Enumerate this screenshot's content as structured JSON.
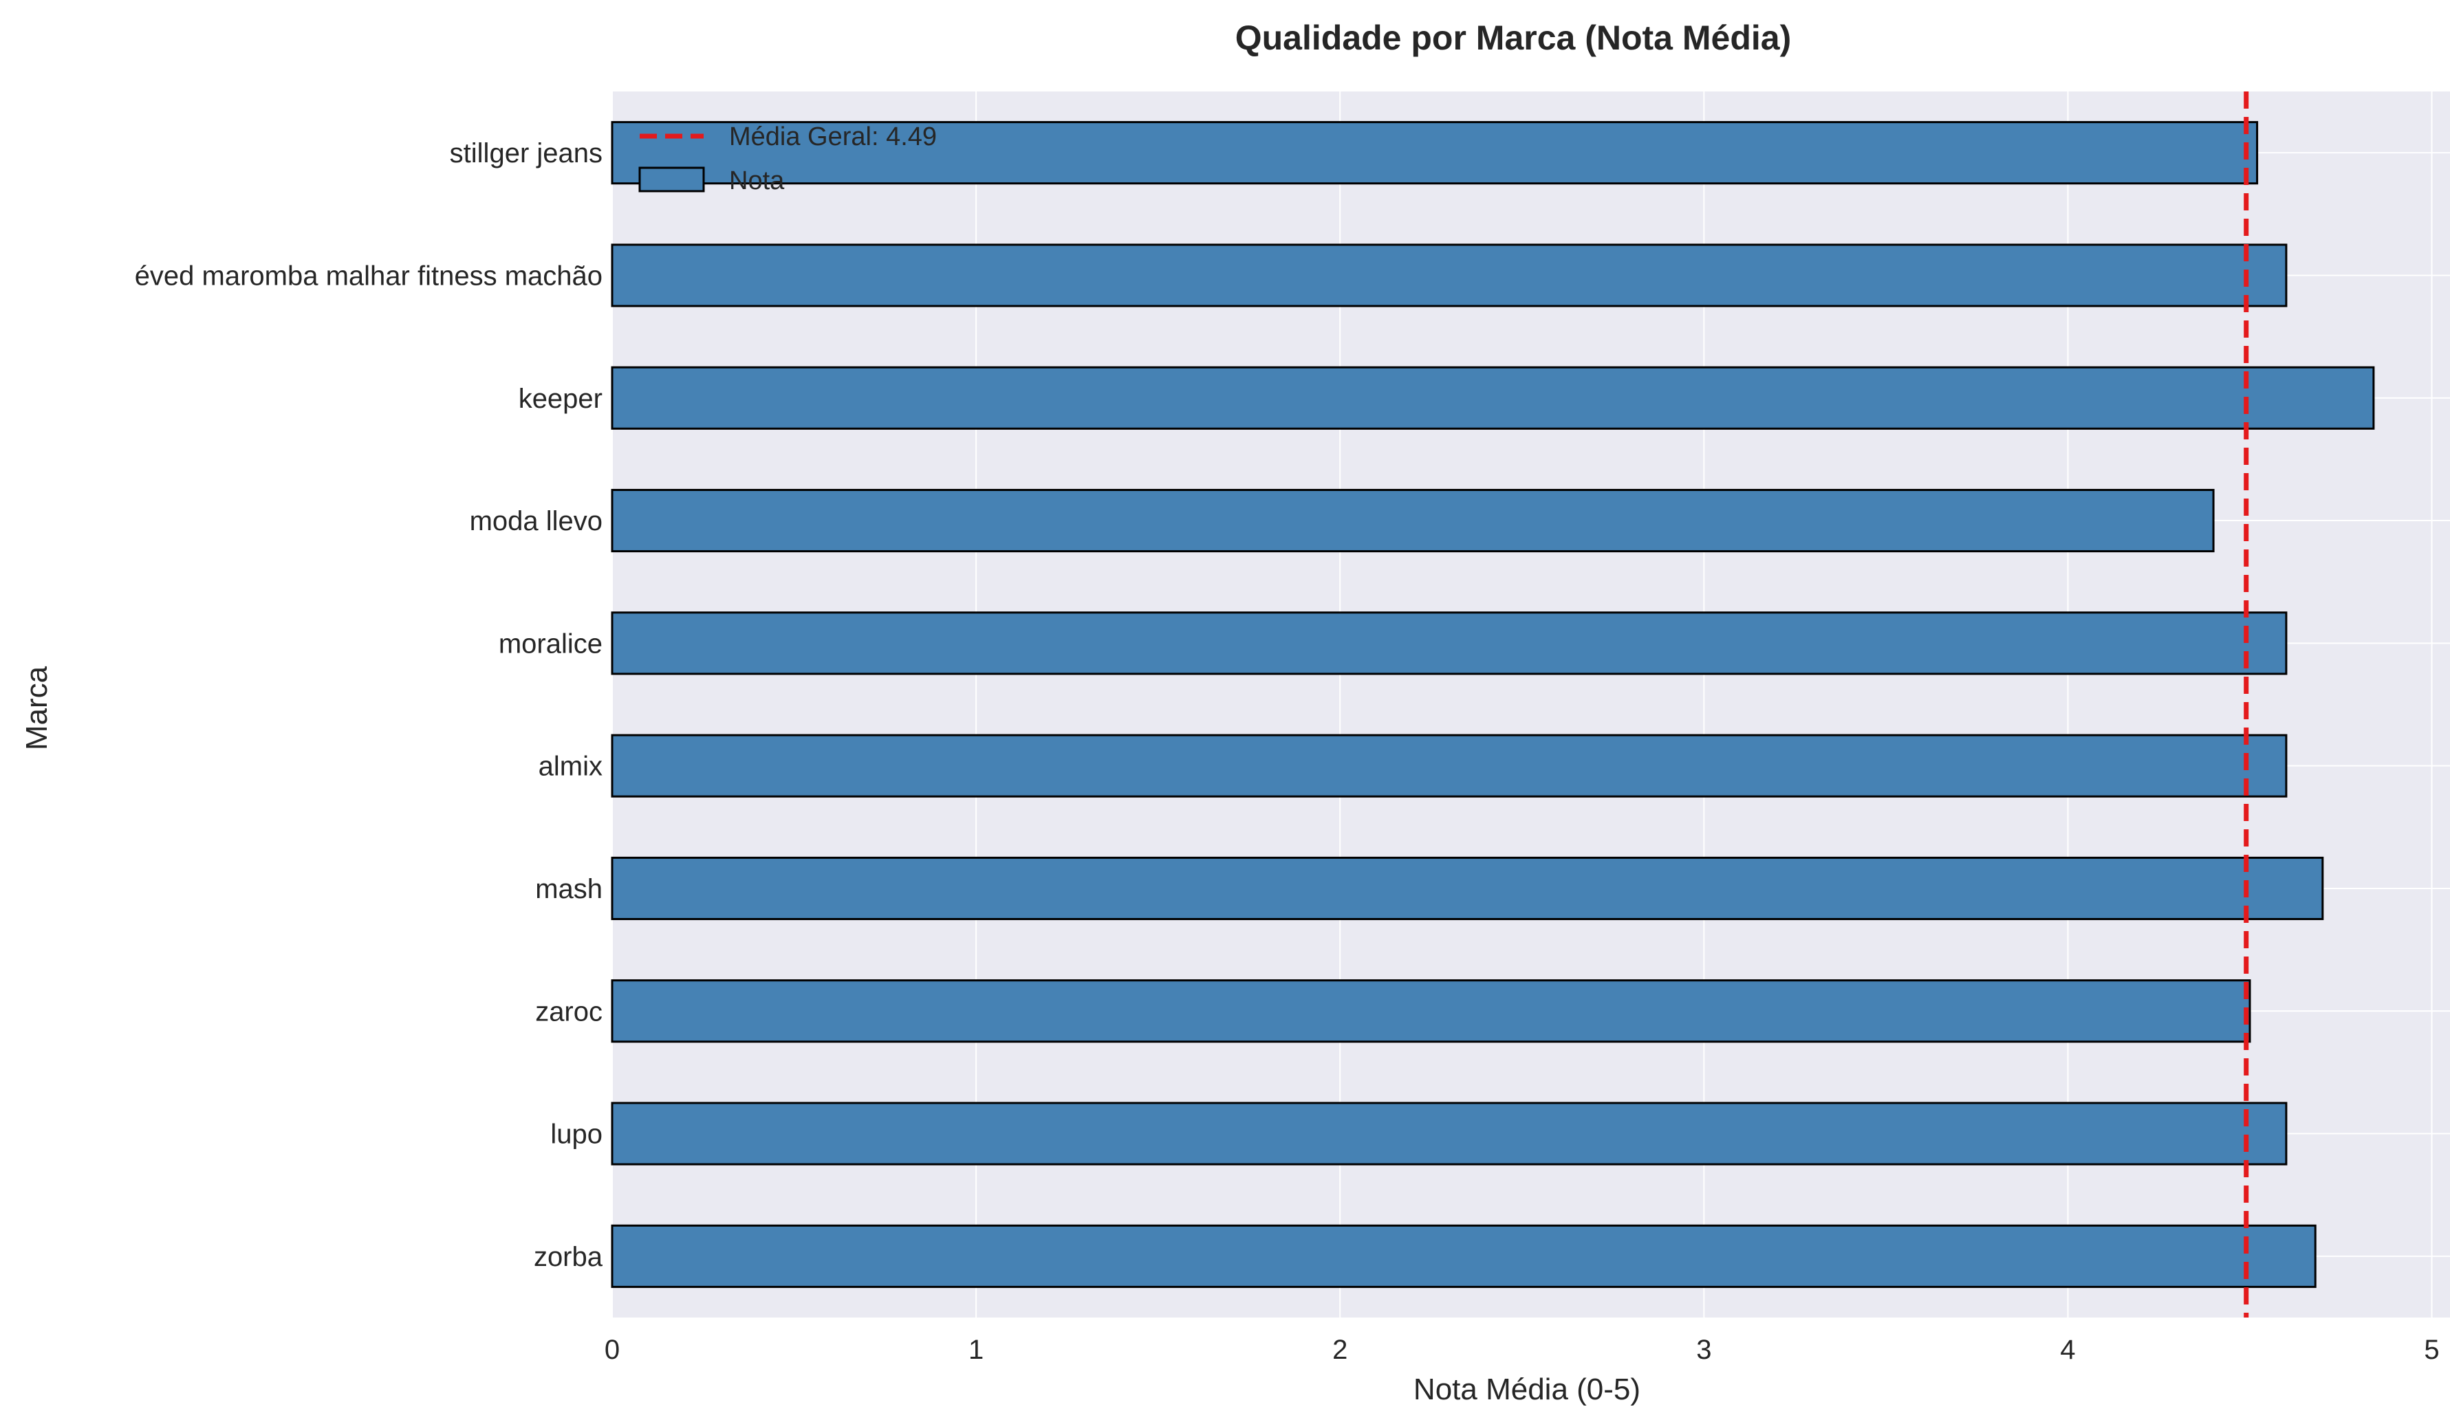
{
  "chart_data": {
    "type": "bar",
    "orientation": "horizontal",
    "title": "Qualidade por Marca (Nota Média)",
    "xlabel": "Nota Média (0-5)",
    "ylabel": "Marca",
    "xlim": [
      0,
      5.05
    ],
    "xticks": [
      "0",
      "1",
      "2",
      "3",
      "4",
      "5"
    ],
    "categories": [
      "stillger jeans",
      "éved maromba malhar fitness machão",
      "keeper",
      "moda llevo",
      "moralice",
      "almix",
      "mash",
      "zaroc",
      "lupo",
      "zorba"
    ],
    "values": [
      4.52,
      4.6,
      4.84,
      4.4,
      4.6,
      4.6,
      4.7,
      4.5,
      4.6,
      4.68
    ],
    "reference_line": {
      "label": "Média Geral: 4.49",
      "value": 4.49,
      "color": "#e41a1c",
      "style": "dashed"
    },
    "legend": {
      "placement": "top-left",
      "entries": [
        "Média Geral: 4.49",
        "Nota"
      ]
    },
    "series_name": "Nota",
    "bar_color": "#4682b4",
    "bar_edge_color": "#000000",
    "background_color": "#eaeaf2",
    "grid": true
  }
}
